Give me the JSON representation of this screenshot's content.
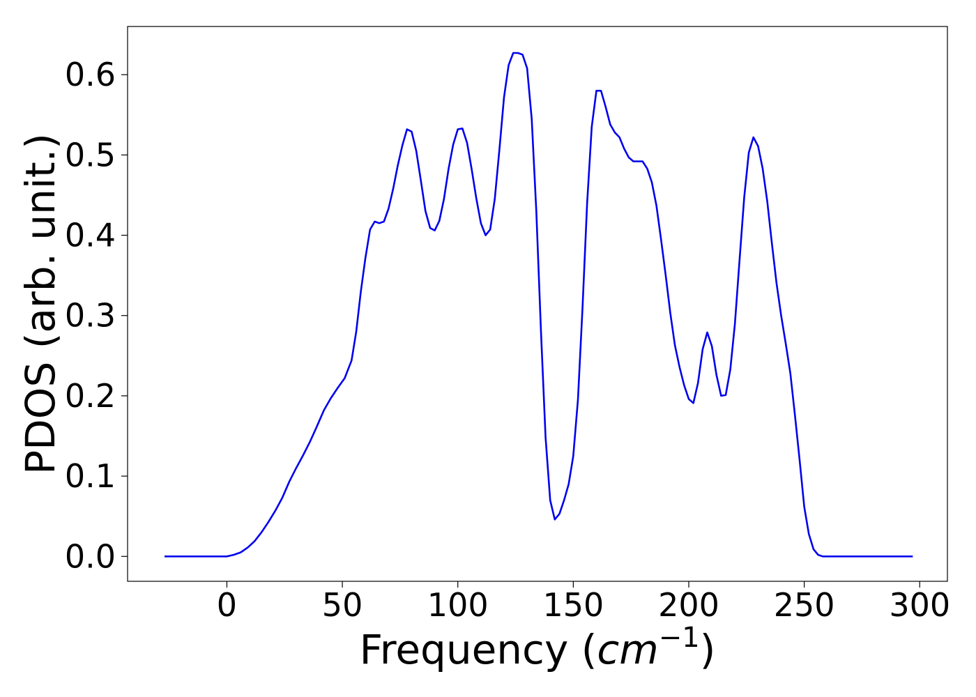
{
  "chart_data": {
    "type": "line",
    "title": "",
    "xlabel": {
      "prefix": "Frequency (",
      "var": "cm",
      "sup": "−1",
      "suffix": ")"
    },
    "ylabel": "PDOS (arb. unit.)",
    "xlim": [
      -43,
      312
    ],
    "ylim": [
      -0.031,
      0.66
    ],
    "xticks": [
      0,
      50,
      100,
      150,
      200,
      250,
      300
    ],
    "yticks": [
      0.0,
      0.1,
      0.2,
      0.3,
      0.4,
      0.5,
      0.6
    ],
    "grid": false,
    "legend": "none",
    "series": [
      {
        "color": "#0000ee",
        "points": [
          [
            -27,
            0
          ],
          [
            -10,
            0
          ],
          [
            0,
            0
          ],
          [
            3,
            0.002
          ],
          [
            6,
            0.005
          ],
          [
            9,
            0.011
          ],
          [
            12,
            0.019
          ],
          [
            15,
            0.03
          ],
          [
            18,
            0.043
          ],
          [
            21,
            0.057
          ],
          [
            24,
            0.073
          ],
          [
            27,
            0.093
          ],
          [
            30,
            0.11
          ],
          [
            33,
            0.126
          ],
          [
            36,
            0.143
          ],
          [
            39,
            0.162
          ],
          [
            42,
            0.182
          ],
          [
            45,
            0.197
          ],
          [
            48,
            0.21
          ],
          [
            51,
            0.222
          ],
          [
            54,
            0.244
          ],
          [
            56,
            0.28
          ],
          [
            58,
            0.33
          ],
          [
            60,
            0.372
          ],
          [
            62,
            0.407
          ],
          [
            64,
            0.417
          ],
          [
            66,
            0.415
          ],
          [
            68,
            0.417
          ],
          [
            70,
            0.433
          ],
          [
            72,
            0.458
          ],
          [
            74,
            0.487
          ],
          [
            76,
            0.512
          ],
          [
            78,
            0.532
          ],
          [
            80,
            0.529
          ],
          [
            82,
            0.505
          ],
          [
            84,
            0.468
          ],
          [
            86,
            0.43
          ],
          [
            88,
            0.409
          ],
          [
            90,
            0.406
          ],
          [
            92,
            0.418
          ],
          [
            94,
            0.445
          ],
          [
            96,
            0.483
          ],
          [
            98,
            0.513
          ],
          [
            100,
            0.532
          ],
          [
            102,
            0.533
          ],
          [
            104,
            0.515
          ],
          [
            106,
            0.482
          ],
          [
            108,
            0.446
          ],
          [
            110,
            0.415
          ],
          [
            112,
            0.4
          ],
          [
            114,
            0.407
          ],
          [
            116,
            0.445
          ],
          [
            118,
            0.506
          ],
          [
            120,
            0.572
          ],
          [
            122,
            0.612
          ],
          [
            124,
            0.627
          ],
          [
            126,
            0.627
          ],
          [
            128,
            0.625
          ],
          [
            130,
            0.608
          ],
          [
            132,
            0.545
          ],
          [
            134,
            0.43
          ],
          [
            136,
            0.28
          ],
          [
            138,
            0.148
          ],
          [
            140,
            0.07
          ],
          [
            142,
            0.046
          ],
          [
            144,
            0.053
          ],
          [
            146,
            0.07
          ],
          [
            148,
            0.09
          ],
          [
            150,
            0.125
          ],
          [
            152,
            0.195
          ],
          [
            154,
            0.31
          ],
          [
            156,
            0.44
          ],
          [
            158,
            0.535
          ],
          [
            160,
            0.58
          ],
          [
            162,
            0.58
          ],
          [
            164,
            0.56
          ],
          [
            166,
            0.538
          ],
          [
            168,
            0.528
          ],
          [
            170,
            0.522
          ],
          [
            172,
            0.508
          ],
          [
            174,
            0.497
          ],
          [
            176,
            0.492
          ],
          [
            178,
            0.492
          ],
          [
            180,
            0.492
          ],
          [
            182,
            0.483
          ],
          [
            184,
            0.466
          ],
          [
            186,
            0.437
          ],
          [
            188,
            0.395
          ],
          [
            190,
            0.35
          ],
          [
            192,
            0.303
          ],
          [
            194,
            0.263
          ],
          [
            196,
            0.236
          ],
          [
            198,
            0.213
          ],
          [
            200,
            0.196
          ],
          [
            202,
            0.191
          ],
          [
            204,
            0.216
          ],
          [
            206,
            0.258
          ],
          [
            208,
            0.279
          ],
          [
            210,
            0.262
          ],
          [
            212,
            0.226
          ],
          [
            214,
            0.2
          ],
          [
            216,
            0.201
          ],
          [
            218,
            0.233
          ],
          [
            220,
            0.29
          ],
          [
            222,
            0.37
          ],
          [
            224,
            0.447
          ],
          [
            226,
            0.503
          ],
          [
            228,
            0.522
          ],
          [
            230,
            0.511
          ],
          [
            232,
            0.483
          ],
          [
            234,
            0.442
          ],
          [
            236,
            0.39
          ],
          [
            238,
            0.34
          ],
          [
            240,
            0.3
          ],
          [
            242,
            0.265
          ],
          [
            244,
            0.228
          ],
          [
            246,
            0.175
          ],
          [
            248,
            0.12
          ],
          [
            250,
            0.062
          ],
          [
            252,
            0.028
          ],
          [
            254,
            0.009
          ],
          [
            256,
            0.002
          ],
          [
            258,
            0
          ],
          [
            265,
            0
          ],
          [
            275,
            0
          ],
          [
            285,
            0
          ],
          [
            295,
            0
          ],
          [
            297,
            0
          ]
        ]
      }
    ]
  }
}
